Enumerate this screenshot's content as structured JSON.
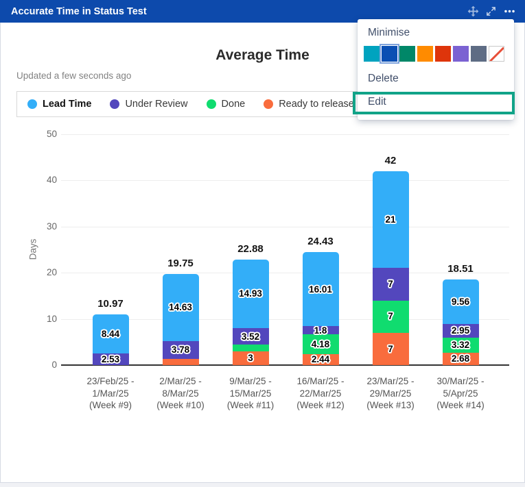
{
  "widget": {
    "title": "Accurate Time in Status Test",
    "updated_text": "Updated a few seconds ago",
    "titlebar_color": "#0d4aac",
    "header_icons": [
      "move-icon",
      "expand-icon",
      "more-icon"
    ]
  },
  "menu": {
    "minimise_label": "Minimise",
    "delete_label": "Delete",
    "edit_label": "Edit",
    "swatches": [
      "#00a3bf",
      "#0b4fb3",
      "#008768",
      "#ff8b00",
      "#de350b",
      "#7b62d2",
      "#5e6c84",
      "none"
    ],
    "selected_swatch_index": 1,
    "edit_highlight_color": "#11a388"
  },
  "chart_data": {
    "type": "bar",
    "stacked": true,
    "title": "Average Time",
    "ylabel": "Days",
    "ylim": [
      0,
      50
    ],
    "yticks": [
      0,
      10,
      20,
      30,
      40,
      50
    ],
    "grid": true,
    "legend_position": "top",
    "categories": [
      [
        "23/Feb/25 -",
        "1/Mar/25",
        "(Week #9)"
      ],
      [
        "2/Mar/25 -",
        "8/Mar/25",
        "(Week #10)"
      ],
      [
        "9/Mar/25 -",
        "15/Mar/25",
        "(Week #11)"
      ],
      [
        "16/Mar/25 -",
        "22/Mar/25",
        "(Week #12)"
      ],
      [
        "23/Mar/25 -",
        "29/Mar/25",
        "(Week #13)"
      ],
      [
        "30/Mar/25 -",
        "5/Apr/25",
        "(Week #14)"
      ]
    ],
    "series": [
      {
        "name": "Ready to release",
        "color": "#f96c3d",
        "values": [
          0,
          1.34,
          3,
          2.44,
          7,
          2.68
        ],
        "labels": [
          "",
          "",
          "3",
          "2.44",
          "7",
          "2.68"
        ]
      },
      {
        "name": "Done",
        "color": "#10dc6f",
        "values": [
          0,
          0,
          1.43,
          4.18,
          7,
          3.32
        ],
        "labels": [
          "",
          "",
          "",
          "4.18",
          "7",
          "3.32"
        ]
      },
      {
        "name": "Under Review",
        "color": "#5347bd",
        "values": [
          2.53,
          3.78,
          3.52,
          1.8,
          7,
          2.95
        ],
        "labels": [
          "2.53",
          "3.78",
          "3.52",
          "1.8",
          "7",
          "2.95"
        ]
      },
      {
        "name": "Lead Time",
        "color": "#33aef8",
        "values": [
          8.44,
          14.63,
          14.93,
          16.01,
          21,
          9.56
        ],
        "labels": [
          "8.44",
          "14.63",
          "14.93",
          "16.01",
          "21",
          "9.56"
        ]
      }
    ],
    "totals": [
      "10.97",
      "19.75",
      "22.88",
      "24.43",
      "42",
      "18.51"
    ],
    "legend": [
      {
        "label": "Lead Time",
        "color": "#33aef8",
        "bold": true
      },
      {
        "label": "Under Review",
        "color": "#5347bd",
        "bold": false
      },
      {
        "label": "Done",
        "color": "#10dc6f",
        "bold": false
      },
      {
        "label": "Ready to release",
        "color": "#f96c3d",
        "bold": false
      }
    ]
  }
}
